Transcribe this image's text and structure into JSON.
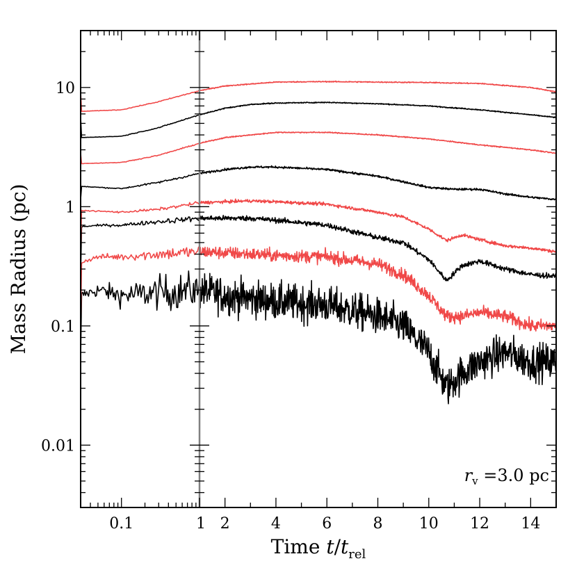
{
  "chart_data": {
    "type": "line",
    "title": "",
    "xlabel": {
      "prefix": "Time ",
      "t": "t",
      "slash": "/",
      "trel_base": "t",
      "trel_sub": "rel"
    },
    "ylabel": "Mass Radius (pc)",
    "yscale": "log",
    "ylim": [
      0.003,
      30
    ],
    "y_tick_labels": [
      {
        "value": 0.01,
        "label": "0.01"
      },
      {
        "value": 0.1,
        "label": "0.1"
      },
      {
        "value": 1,
        "label": "1"
      },
      {
        "value": 10,
        "label": "10"
      }
    ],
    "x_left_panel": {
      "scale": "log",
      "range": [
        0.03,
        1.0
      ],
      "tick_labels": [
        {
          "value": 0.1,
          "label": "0.1"
        }
      ]
    },
    "x_right_panel": {
      "scale": "linear",
      "range": [
        1.0,
        15.0
      ],
      "tick_labels": [
        {
          "value": 1,
          "label": "1"
        },
        {
          "value": 2,
          "label": "2"
        },
        {
          "value": 4,
          "label": "4"
        },
        {
          "value": 6,
          "label": "6"
        },
        {
          "value": 8,
          "label": "8"
        },
        {
          "value": 10,
          "label": "10"
        },
        {
          "value": 12,
          "label": "12"
        },
        {
          "value": 14,
          "label": "14"
        }
      ]
    },
    "annotation": {
      "r": "r",
      "sub": "v",
      "text": " =3.0 pc"
    },
    "series": [
      {
        "name": "series-1",
        "color": "#000000",
        "noise": 0.35,
        "keys": [
          [
            0.03,
            0.18
          ],
          [
            0.05,
            0.2
          ],
          [
            0.1,
            0.18
          ],
          [
            0.3,
            0.19
          ],
          [
            1.0,
            0.2
          ],
          [
            2,
            0.18
          ],
          [
            4,
            0.16
          ],
          [
            6,
            0.15
          ],
          [
            8,
            0.12
          ],
          [
            9,
            0.1
          ],
          [
            10,
            0.06
          ],
          [
            10.7,
            0.03
          ],
          [
            11.3,
            0.04
          ],
          [
            12,
            0.05
          ],
          [
            13,
            0.06
          ],
          [
            14,
            0.05
          ],
          [
            15,
            0.05
          ]
        ]
      },
      {
        "name": "series-2",
        "color": "#f04848",
        "noise": 0.12,
        "keys": [
          [
            0.03,
            0.34
          ],
          [
            0.05,
            0.38
          ],
          [
            0.1,
            0.38
          ],
          [
            0.3,
            0.4
          ],
          [
            1.0,
            0.42
          ],
          [
            2,
            0.41
          ],
          [
            4,
            0.39
          ],
          [
            6,
            0.38
          ],
          [
            8,
            0.33
          ],
          [
            9,
            0.27
          ],
          [
            10,
            0.18
          ],
          [
            10.7,
            0.12
          ],
          [
            11.3,
            0.12
          ],
          [
            12,
            0.13
          ],
          [
            13,
            0.12
          ],
          [
            14,
            0.1
          ],
          [
            15,
            0.1
          ]
        ]
      },
      {
        "name": "series-3",
        "color": "#000000",
        "noise": 0.05,
        "keys": [
          [
            0.03,
            0.68
          ],
          [
            0.06,
            0.7
          ],
          [
            0.1,
            0.7
          ],
          [
            0.3,
            0.75
          ],
          [
            1.0,
            0.8
          ],
          [
            2,
            0.8
          ],
          [
            3,
            0.8
          ],
          [
            4,
            0.77
          ],
          [
            6,
            0.7
          ],
          [
            8,
            0.55
          ],
          [
            9,
            0.5
          ],
          [
            10,
            0.36
          ],
          [
            10.7,
            0.24
          ],
          [
            11.3,
            0.32
          ],
          [
            12,
            0.35
          ],
          [
            13,
            0.3
          ],
          [
            14,
            0.27
          ],
          [
            15,
            0.26
          ]
        ]
      },
      {
        "name": "series-4",
        "color": "#f04848",
        "noise": 0.03,
        "keys": [
          [
            0.03,
            0.93
          ],
          [
            0.1,
            0.9
          ],
          [
            0.3,
            0.95
          ],
          [
            1.0,
            1.08
          ],
          [
            2,
            1.1
          ],
          [
            3,
            1.12
          ],
          [
            4,
            1.1
          ],
          [
            6,
            1.05
          ],
          [
            8,
            0.9
          ],
          [
            9,
            0.82
          ],
          [
            10,
            0.65
          ],
          [
            10.7,
            0.52
          ],
          [
            11.3,
            0.58
          ],
          [
            12,
            0.53
          ],
          [
            13,
            0.47
          ],
          [
            14,
            0.45
          ],
          [
            15,
            0.42
          ]
        ]
      },
      {
        "name": "series-5",
        "color": "#000000",
        "noise": 0.02,
        "keys": [
          [
            0.03,
            1.48
          ],
          [
            0.1,
            1.42
          ],
          [
            0.3,
            1.6
          ],
          [
            1.0,
            1.9
          ],
          [
            2,
            2.05
          ],
          [
            3,
            2.15
          ],
          [
            4,
            2.15
          ],
          [
            6,
            2.05
          ],
          [
            8,
            1.8
          ],
          [
            9,
            1.62
          ],
          [
            10,
            1.45
          ],
          [
            11,
            1.4
          ],
          [
            12,
            1.4
          ],
          [
            13,
            1.28
          ],
          [
            14,
            1.2
          ],
          [
            15,
            1.15
          ]
        ]
      },
      {
        "name": "series-6",
        "color": "#f04848",
        "noise": 0.01,
        "keys": [
          [
            0.03,
            2.3
          ],
          [
            0.1,
            2.35
          ],
          [
            0.3,
            2.7
          ],
          [
            1.0,
            3.4
          ],
          [
            2,
            3.8
          ],
          [
            4,
            4.2
          ],
          [
            6,
            4.2
          ],
          [
            8,
            4.0
          ],
          [
            10,
            3.7
          ],
          [
            12,
            3.3
          ],
          [
            14,
            3.0
          ],
          [
            15,
            2.8
          ]
        ]
      },
      {
        "name": "series-7",
        "color": "#000000",
        "noise": 0.01,
        "keys": [
          [
            0.03,
            3.8
          ],
          [
            0.1,
            3.9
          ],
          [
            0.3,
            4.6
          ],
          [
            1.0,
            5.9
          ],
          [
            2,
            6.7
          ],
          [
            3,
            7.2
          ],
          [
            4,
            7.4
          ],
          [
            6,
            7.5
          ],
          [
            8,
            7.3
          ],
          [
            10,
            7.0
          ],
          [
            12,
            6.5
          ],
          [
            14,
            5.9
          ],
          [
            15,
            5.6
          ]
        ]
      },
      {
        "name": "series-8",
        "color": "#f04848",
        "noise": 0.01,
        "keys": [
          [
            0.03,
            6.3
          ],
          [
            0.1,
            6.5
          ],
          [
            0.3,
            7.6
          ],
          [
            1.0,
            9.4
          ],
          [
            2,
            10.3
          ],
          [
            4,
            11.1
          ],
          [
            6,
            11.2
          ],
          [
            8,
            11.1
          ],
          [
            10,
            11.0
          ],
          [
            12,
            10.8
          ],
          [
            14,
            10.0
          ],
          [
            15,
            9.2
          ]
        ]
      }
    ]
  }
}
